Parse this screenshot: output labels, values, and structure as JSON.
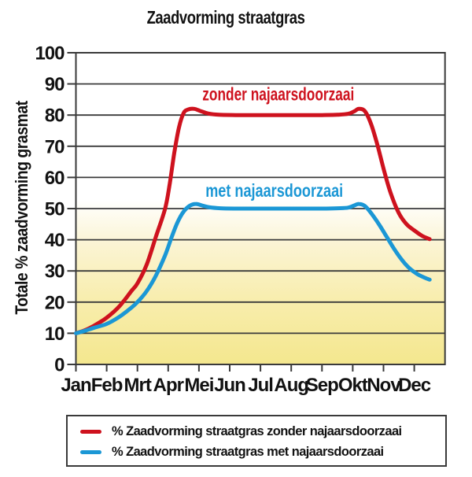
{
  "page": {
    "background": "#FFFFFF"
  },
  "chart_data": {
    "type": "line",
    "title": "Zaadvorming straatgras",
    "ylabel": "Totale % zaadvorming grasmat",
    "xlabel": "",
    "ylim": [
      0,
      100
    ],
    "yticks": [
      0,
      10,
      20,
      30,
      40,
      50,
      60,
      70,
      80,
      90,
      100
    ],
    "categories": [
      "Jan",
      "Feb",
      "Mrt",
      "Apr",
      "Mei",
      "Jun",
      "Jul",
      "Aug",
      "Sep",
      "Okt",
      "Nov",
      "Dec"
    ],
    "grid": true,
    "legend_position": "bottom",
    "axis_color": "#3A3A3A",
    "text_color": "#121212",
    "plot_background": {
      "type": "vertical-gradient",
      "stops": [
        [
          0,
          "#FFFFFF"
        ],
        [
          0.47,
          "#FFFFFF"
        ],
        [
          0.62,
          "#FBF4D2"
        ],
        [
          0.8,
          "#F8EDAC"
        ],
        [
          1,
          "#F4E78E"
        ]
      ]
    },
    "series": [
      {
        "name": "% Zaadvorming straatgras zonder najaarsdoorzaai",
        "inline_label": "zonder najaarsdoorzaai",
        "color": "#CE121E",
        "monthly_values": [
          10,
          15,
          26,
          58,
          81,
          80,
          80,
          80,
          80,
          82,
          61,
          41
        ],
        "points": [
          [
            0,
            10
          ],
          [
            0.3,
            11
          ],
          [
            0.6,
            12.5
          ],
          [
            1,
            15
          ],
          [
            1.4,
            18.5
          ],
          [
            1.8,
            23.5
          ],
          [
            2,
            26
          ],
          [
            2.3,
            32
          ],
          [
            2.6,
            41
          ],
          [
            2.9,
            50
          ],
          [
            3.05,
            58
          ],
          [
            3.2,
            68
          ],
          [
            3.35,
            76
          ],
          [
            3.5,
            80.6
          ],
          [
            3.65,
            81.8
          ],
          [
            3.85,
            82
          ],
          [
            4.05,
            81.3
          ],
          [
            4.3,
            80.5
          ],
          [
            4.65,
            80.1
          ],
          [
            5.2,
            80
          ],
          [
            6,
            80
          ],
          [
            7,
            80
          ],
          [
            8,
            80
          ],
          [
            8.5,
            80.1
          ],
          [
            8.85,
            80.4
          ],
          [
            9.05,
            81.2
          ],
          [
            9.2,
            82
          ],
          [
            9.4,
            81.2
          ],
          [
            9.6,
            77
          ],
          [
            9.8,
            70.5
          ],
          [
            10.05,
            61
          ],
          [
            10.25,
            54.5
          ],
          [
            10.5,
            48.5
          ],
          [
            10.75,
            45
          ],
          [
            11,
            43
          ],
          [
            11.25,
            41.3
          ],
          [
            11.5,
            40.2
          ]
        ],
        "label_pos": [
          6.58,
          86.8
        ]
      },
      {
        "name": "% Zaadvorming straatgras met najaarsdoorzaai",
        "inline_label": "met najaarsdoorzaai",
        "color": "#1B97D5",
        "monthly_values": [
          10,
          13,
          20,
          38,
          51,
          50,
          50,
          50,
          50,
          51,
          42,
          27
        ],
        "points": [
          [
            0,
            10
          ],
          [
            0.3,
            10.8
          ],
          [
            0.6,
            11.8
          ],
          [
            1,
            13
          ],
          [
            1.4,
            15.2
          ],
          [
            1.8,
            18.2
          ],
          [
            2,
            20
          ],
          [
            2.3,
            23.5
          ],
          [
            2.6,
            28.5
          ],
          [
            2.9,
            35
          ],
          [
            3.1,
            40.5
          ],
          [
            3.3,
            45.5
          ],
          [
            3.5,
            49
          ],
          [
            3.7,
            50.9
          ],
          [
            3.9,
            51.5
          ],
          [
            4.1,
            51
          ],
          [
            4.35,
            50.4
          ],
          [
            4.7,
            50.1
          ],
          [
            5.3,
            50
          ],
          [
            6,
            50
          ],
          [
            7,
            50
          ],
          [
            8,
            50
          ],
          [
            8.5,
            50.1
          ],
          [
            8.85,
            50.3
          ],
          [
            9.05,
            51
          ],
          [
            9.2,
            51.5
          ],
          [
            9.4,
            50.8
          ],
          [
            9.6,
            48.5
          ],
          [
            9.85,
            45
          ],
          [
            10.1,
            41
          ],
          [
            10.35,
            37
          ],
          [
            10.6,
            33.5
          ],
          [
            10.85,
            30.8
          ],
          [
            11.1,
            29
          ],
          [
            11.3,
            28
          ],
          [
            11.5,
            27.2
          ]
        ],
        "label_pos": [
          6.45,
          55.8
        ]
      }
    ]
  }
}
